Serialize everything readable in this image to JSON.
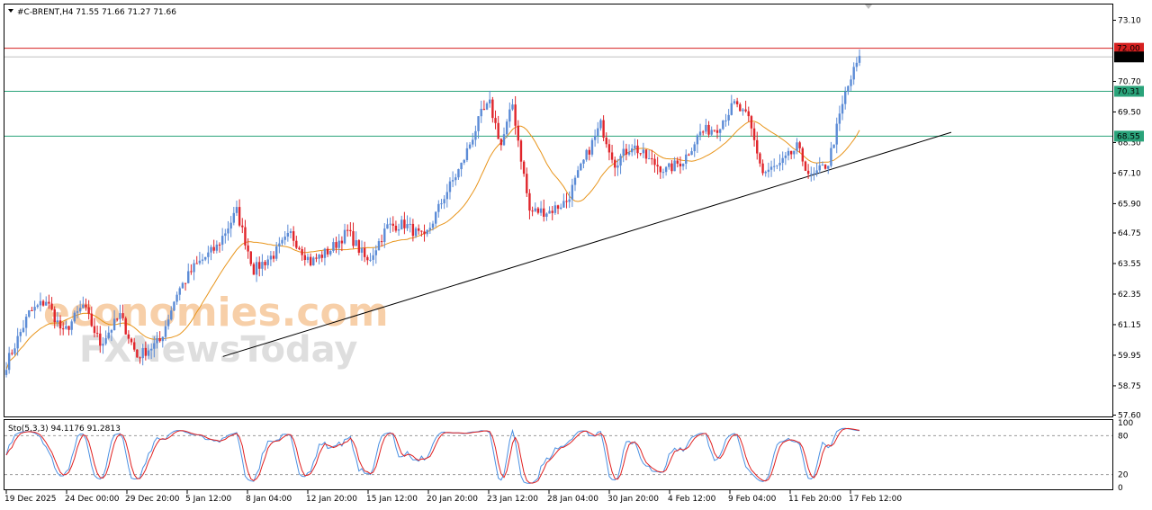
{
  "header": {
    "symbol_line": "#C-BRENT,H4  71.55 71.66 71.27 71.66"
  },
  "stochastic": {
    "label": "Sto(5,3,3) 94.1176 91.2813",
    "levels": [
      100,
      80,
      20,
      0
    ],
    "k_color": "#4a90e2",
    "d_color": "#e02020"
  },
  "watermark": {
    "line1": "economies.com",
    "line2": "FXNewsToday"
  },
  "colors": {
    "bull": "#5b8bd6",
    "bear": "#e0252b",
    "ma": "#e8941a",
    "trendline": "#000000",
    "resistance": "#d62020",
    "support": "#2aa37a",
    "last_price_bg": "#000000"
  },
  "chart_data": {
    "type": "candlestick",
    "title": "#C-BRENT,H4",
    "y_ticks": [
      73.1,
      70.7,
      69.5,
      68.3,
      67.1,
      65.9,
      64.75,
      63.55,
      62.35,
      61.15,
      59.95,
      58.75,
      57.6
    ],
    "ylim": [
      57.6,
      73.1
    ],
    "x_ticks": [
      "19 Dec 2025",
      "24 Dec 00:00",
      "29 Dec 20:00",
      "5 Jan 12:00",
      "8 Jan 04:00",
      "12 Jan 20:00",
      "15 Jan 12:00",
      "20 Jan 20:00",
      "23 Jan 12:00",
      "28 Jan 04:00",
      "30 Jan 20:00",
      "4 Feb 12:00",
      "9 Feb 04:00",
      "11 Feb 20:00",
      "17 Feb 12:00"
    ],
    "horizontal_levels": [
      {
        "price": 72.0,
        "label": "72.00",
        "color": "#d62020"
      },
      {
        "price": 70.31,
        "label": "70.31",
        "color": "#2aa37a"
      },
      {
        "price": 68.55,
        "label": "68.55",
        "color": "#2aa37a"
      }
    ],
    "last_price": {
      "price": 71.66,
      "label": "71.66"
    },
    "trendline": {
      "from": [
        59.9,
        0.196
      ],
      "to": [
        68.7,
        0.855
      ]
    },
    "anchors": [
      [
        0,
        59.6
      ],
      [
        8,
        61.6
      ],
      [
        14,
        62.1
      ],
      [
        20,
        60.8
      ],
      [
        27,
        61.9
      ],
      [
        33,
        60.4
      ],
      [
        40,
        61.5
      ],
      [
        46,
        59.9
      ],
      [
        54,
        60.5
      ],
      [
        60,
        62.4
      ],
      [
        66,
        63.4
      ],
      [
        74,
        64.2
      ],
      [
        81,
        65.6
      ],
      [
        87,
        63.3
      ],
      [
        94,
        63.9
      ],
      [
        100,
        64.7
      ],
      [
        107,
        63.6
      ],
      [
        114,
        64.1
      ],
      [
        120,
        64.8
      ],
      [
        127,
        63.6
      ],
      [
        134,
        65.0
      ],
      [
        140,
        65.1
      ],
      [
        147,
        64.5
      ],
      [
        154,
        66.2
      ],
      [
        160,
        67.4
      ],
      [
        167,
        69.4
      ],
      [
        170,
        69.8
      ],
      [
        174,
        68.2
      ],
      [
        178,
        69.8
      ],
      [
        184,
        65.6
      ],
      [
        191,
        65.6
      ],
      [
        197,
        66.0
      ],
      [
        204,
        67.8
      ],
      [
        209,
        69.0
      ],
      [
        214,
        67.5
      ],
      [
        220,
        68.2
      ],
      [
        226,
        67.6
      ],
      [
        232,
        67.2
      ],
      [
        238,
        67.6
      ],
      [
        244,
        68.7
      ],
      [
        250,
        68.9
      ],
      [
        256,
        69.8
      ],
      [
        261,
        69.2
      ],
      [
        266,
        67.1
      ],
      [
        272,
        67.4
      ],
      [
        278,
        68.1
      ],
      [
        283,
        66.9
      ],
      [
        289,
        67.5
      ],
      [
        295,
        70.2
      ],
      [
        300,
        71.7
      ]
    ]
  }
}
